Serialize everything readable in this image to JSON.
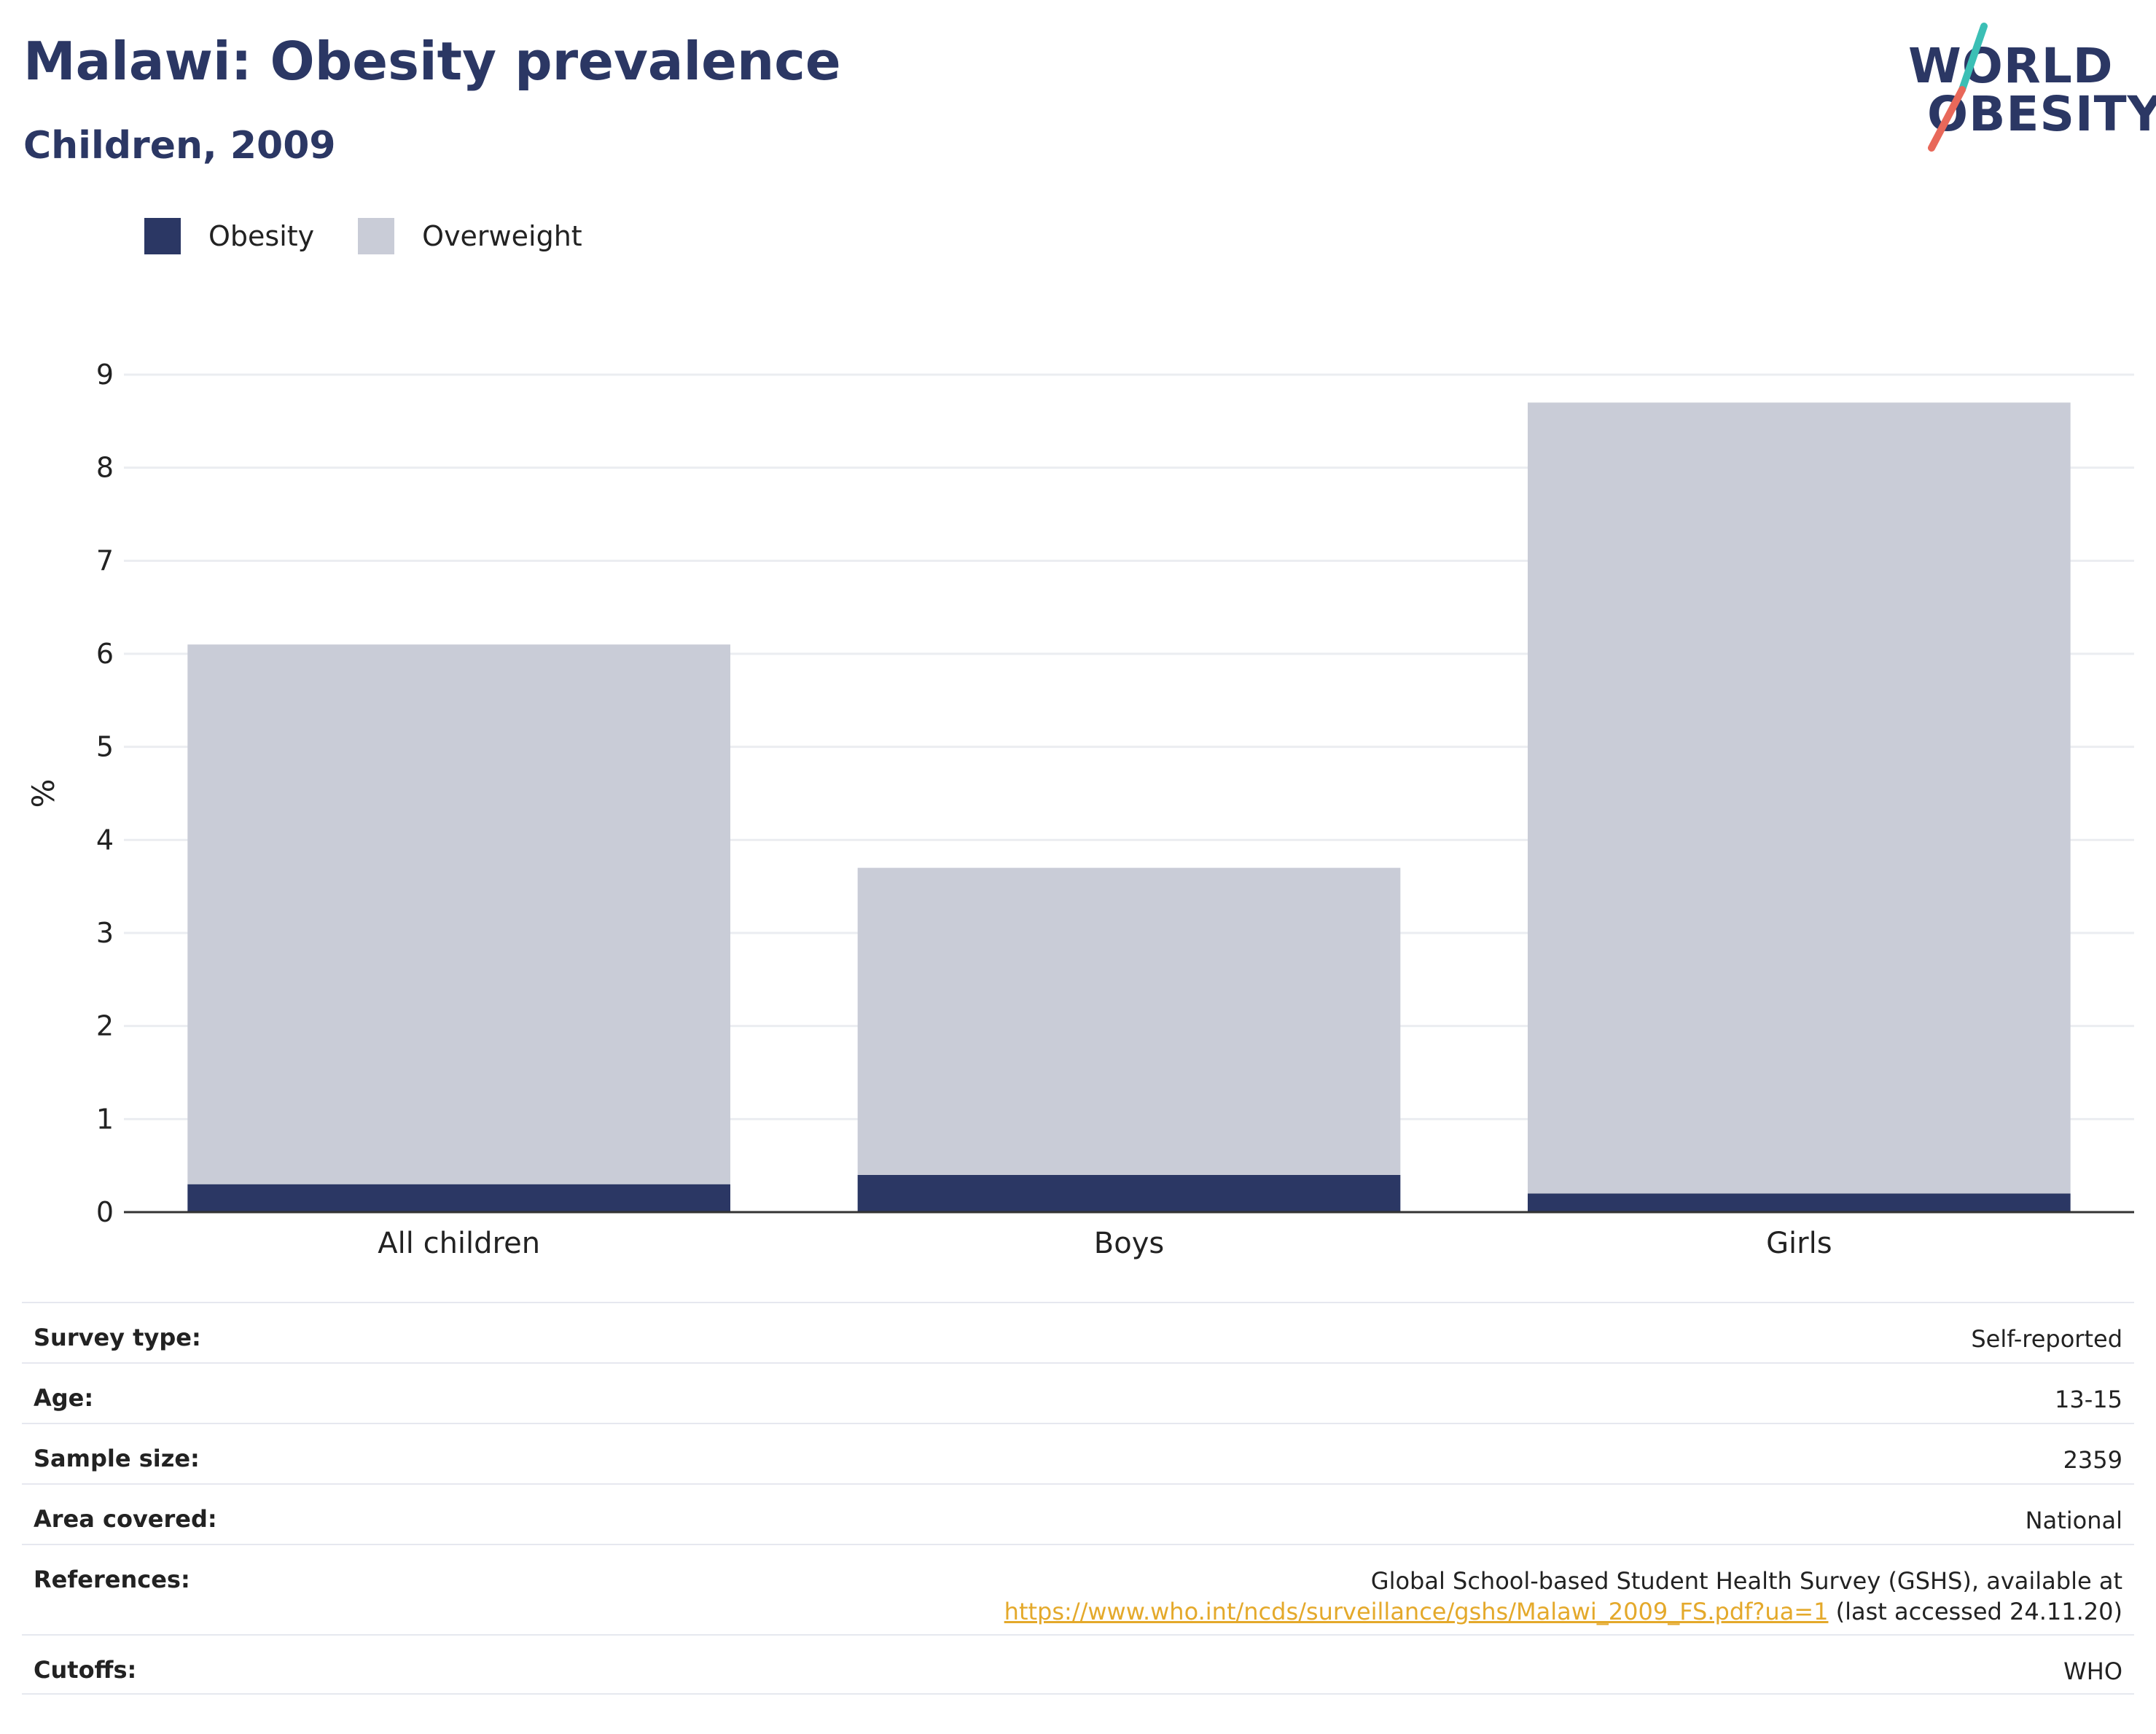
{
  "header": {
    "title": "Malawi: Obesity prevalence",
    "subtitle": "Children, 2009"
  },
  "logo": {
    "line1": "WORLD",
    "line2": "OBESITY",
    "accent_teal": "#3bbfb5",
    "accent_coral": "#e8685a"
  },
  "colors": {
    "obesity": "#2b3764",
    "overweight": "#c9ccd7",
    "link": "#e4a92b"
  },
  "chart_data": {
    "type": "bar",
    "stacked": true,
    "categories": [
      "All children",
      "Boys",
      "Girls"
    ],
    "series": [
      {
        "name": "Obesity",
        "values": [
          0.3,
          0.4,
          0.2
        ],
        "color": "#2b3764"
      },
      {
        "name": "Overweight",
        "values": [
          5.8,
          3.3,
          8.5
        ],
        "color": "#c9ccd7"
      }
    ],
    "ylabel": "%",
    "xlabel": "",
    "ylim": [
      0,
      9
    ],
    "yticks": [
      0,
      1,
      2,
      3,
      4,
      5,
      6,
      7,
      8,
      9
    ],
    "grid": true,
    "legend_position": "top-left"
  },
  "info": {
    "survey_type": {
      "label": "Survey type:",
      "value": "Self-reported"
    },
    "age": {
      "label": "Age:",
      "value": "13-15"
    },
    "sample_size": {
      "label": "Sample size:",
      "value": "2359"
    },
    "area": {
      "label": "Area covered:",
      "value": "National"
    },
    "references": {
      "label": "References:",
      "line1": "Global School-based Student Health Survey (GSHS), available at",
      "link": "https://www.who.int/ncds/surveillance/gshs/Malawi_2009_FS.pdf?ua=1",
      "suffix": " (last accessed 24.11.20)"
    },
    "cutoffs": {
      "label": "Cutoffs:",
      "value": "WHO"
    }
  }
}
